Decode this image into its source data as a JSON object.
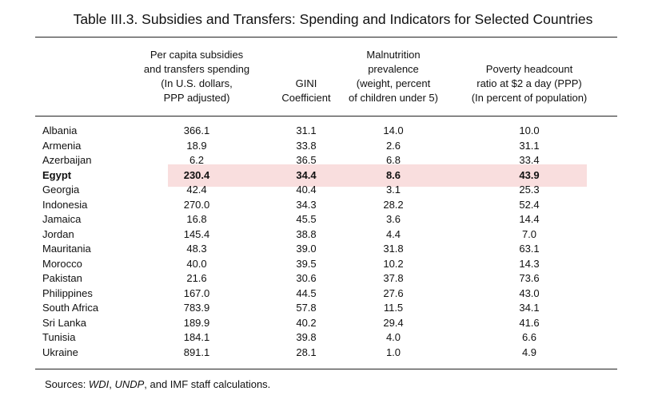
{
  "title": "Table III.3. Subsidies and Transfers: Spending and Indicators for Selected Countries",
  "columns": [
    {
      "lines": [
        "Per capita subsidies",
        "and transfers spending",
        "(In U.S. dollars,",
        "PPP adjusted)"
      ]
    },
    {
      "lines": [
        "GINI",
        "Coefficient"
      ]
    },
    {
      "lines": [
        "Malnutrition",
        "prevalence",
        "(weight, percent",
        "of children under 5)"
      ]
    },
    {
      "lines": [
        "Poverty headcount",
        "ratio at $2 a day (PPP)",
        "(In percent of population)"
      ]
    }
  ],
  "rows": [
    {
      "country": "Albania",
      "subsidies": "366.1",
      "gini": "31.1",
      "malnutrition": "14.0",
      "poverty": "10.0"
    },
    {
      "country": "Armenia",
      "subsidies": "18.9",
      "gini": "33.8",
      "malnutrition": "2.6",
      "poverty": "31.1"
    },
    {
      "country": "Azerbaijan",
      "subsidies": "6.2",
      "gini": "36.5",
      "malnutrition": "6.8",
      "poverty": "33.4"
    },
    {
      "country": "Egypt",
      "subsidies": "230.4",
      "gini": "34.4",
      "malnutrition": "8.6",
      "poverty": "43.9",
      "highlight": true
    },
    {
      "country": "Georgia",
      "subsidies": "42.4",
      "gini": "40.4",
      "malnutrition": "3.1",
      "poverty": "25.3"
    },
    {
      "country": "Indonesia",
      "subsidies": "270.0",
      "gini": "34.3",
      "malnutrition": "28.2",
      "poverty": "52.4"
    },
    {
      "country": "Jamaica",
      "subsidies": "16.8",
      "gini": "45.5",
      "malnutrition": "3.6",
      "poverty": "14.4"
    },
    {
      "country": "Jordan",
      "subsidies": "145.4",
      "gini": "38.8",
      "malnutrition": "4.4",
      "poverty": "7.0"
    },
    {
      "country": "Mauritania",
      "subsidies": "48.3",
      "gini": "39.0",
      "malnutrition": "31.8",
      "poverty": "63.1"
    },
    {
      "country": "Morocco",
      "subsidies": "40.0",
      "gini": "39.5",
      "malnutrition": "10.2",
      "poverty": "14.3"
    },
    {
      "country": "Pakistan",
      "subsidies": "21.6",
      "gini": "30.6",
      "malnutrition": "37.8",
      "poverty": "73.6"
    },
    {
      "country": "Philippines",
      "subsidies": "167.0",
      "gini": "44.5",
      "malnutrition": "27.6",
      "poverty": "43.0"
    },
    {
      "country": "South Africa",
      "subsidies": "783.9",
      "gini": "57.8",
      "malnutrition": "11.5",
      "poverty": "34.1"
    },
    {
      "country": "Sri Lanka",
      "subsidies": "189.9",
      "gini": "40.2",
      "malnutrition": "29.4",
      "poverty": "41.6"
    },
    {
      "country": "Tunisia",
      "subsidies": "184.1",
      "gini": "39.8",
      "malnutrition": "4.0",
      "poverty": "6.6"
    },
    {
      "country": "Ukraine",
      "subsidies": "891.1",
      "gini": "28.1",
      "malnutrition": "1.0",
      "poverty": "4.9"
    }
  ],
  "source": {
    "prefix": "Sources: ",
    "italic1": "WDI",
    "sep": ", ",
    "italic2": "UNDP",
    "suffix": ",  and IMF staff calculations."
  }
}
